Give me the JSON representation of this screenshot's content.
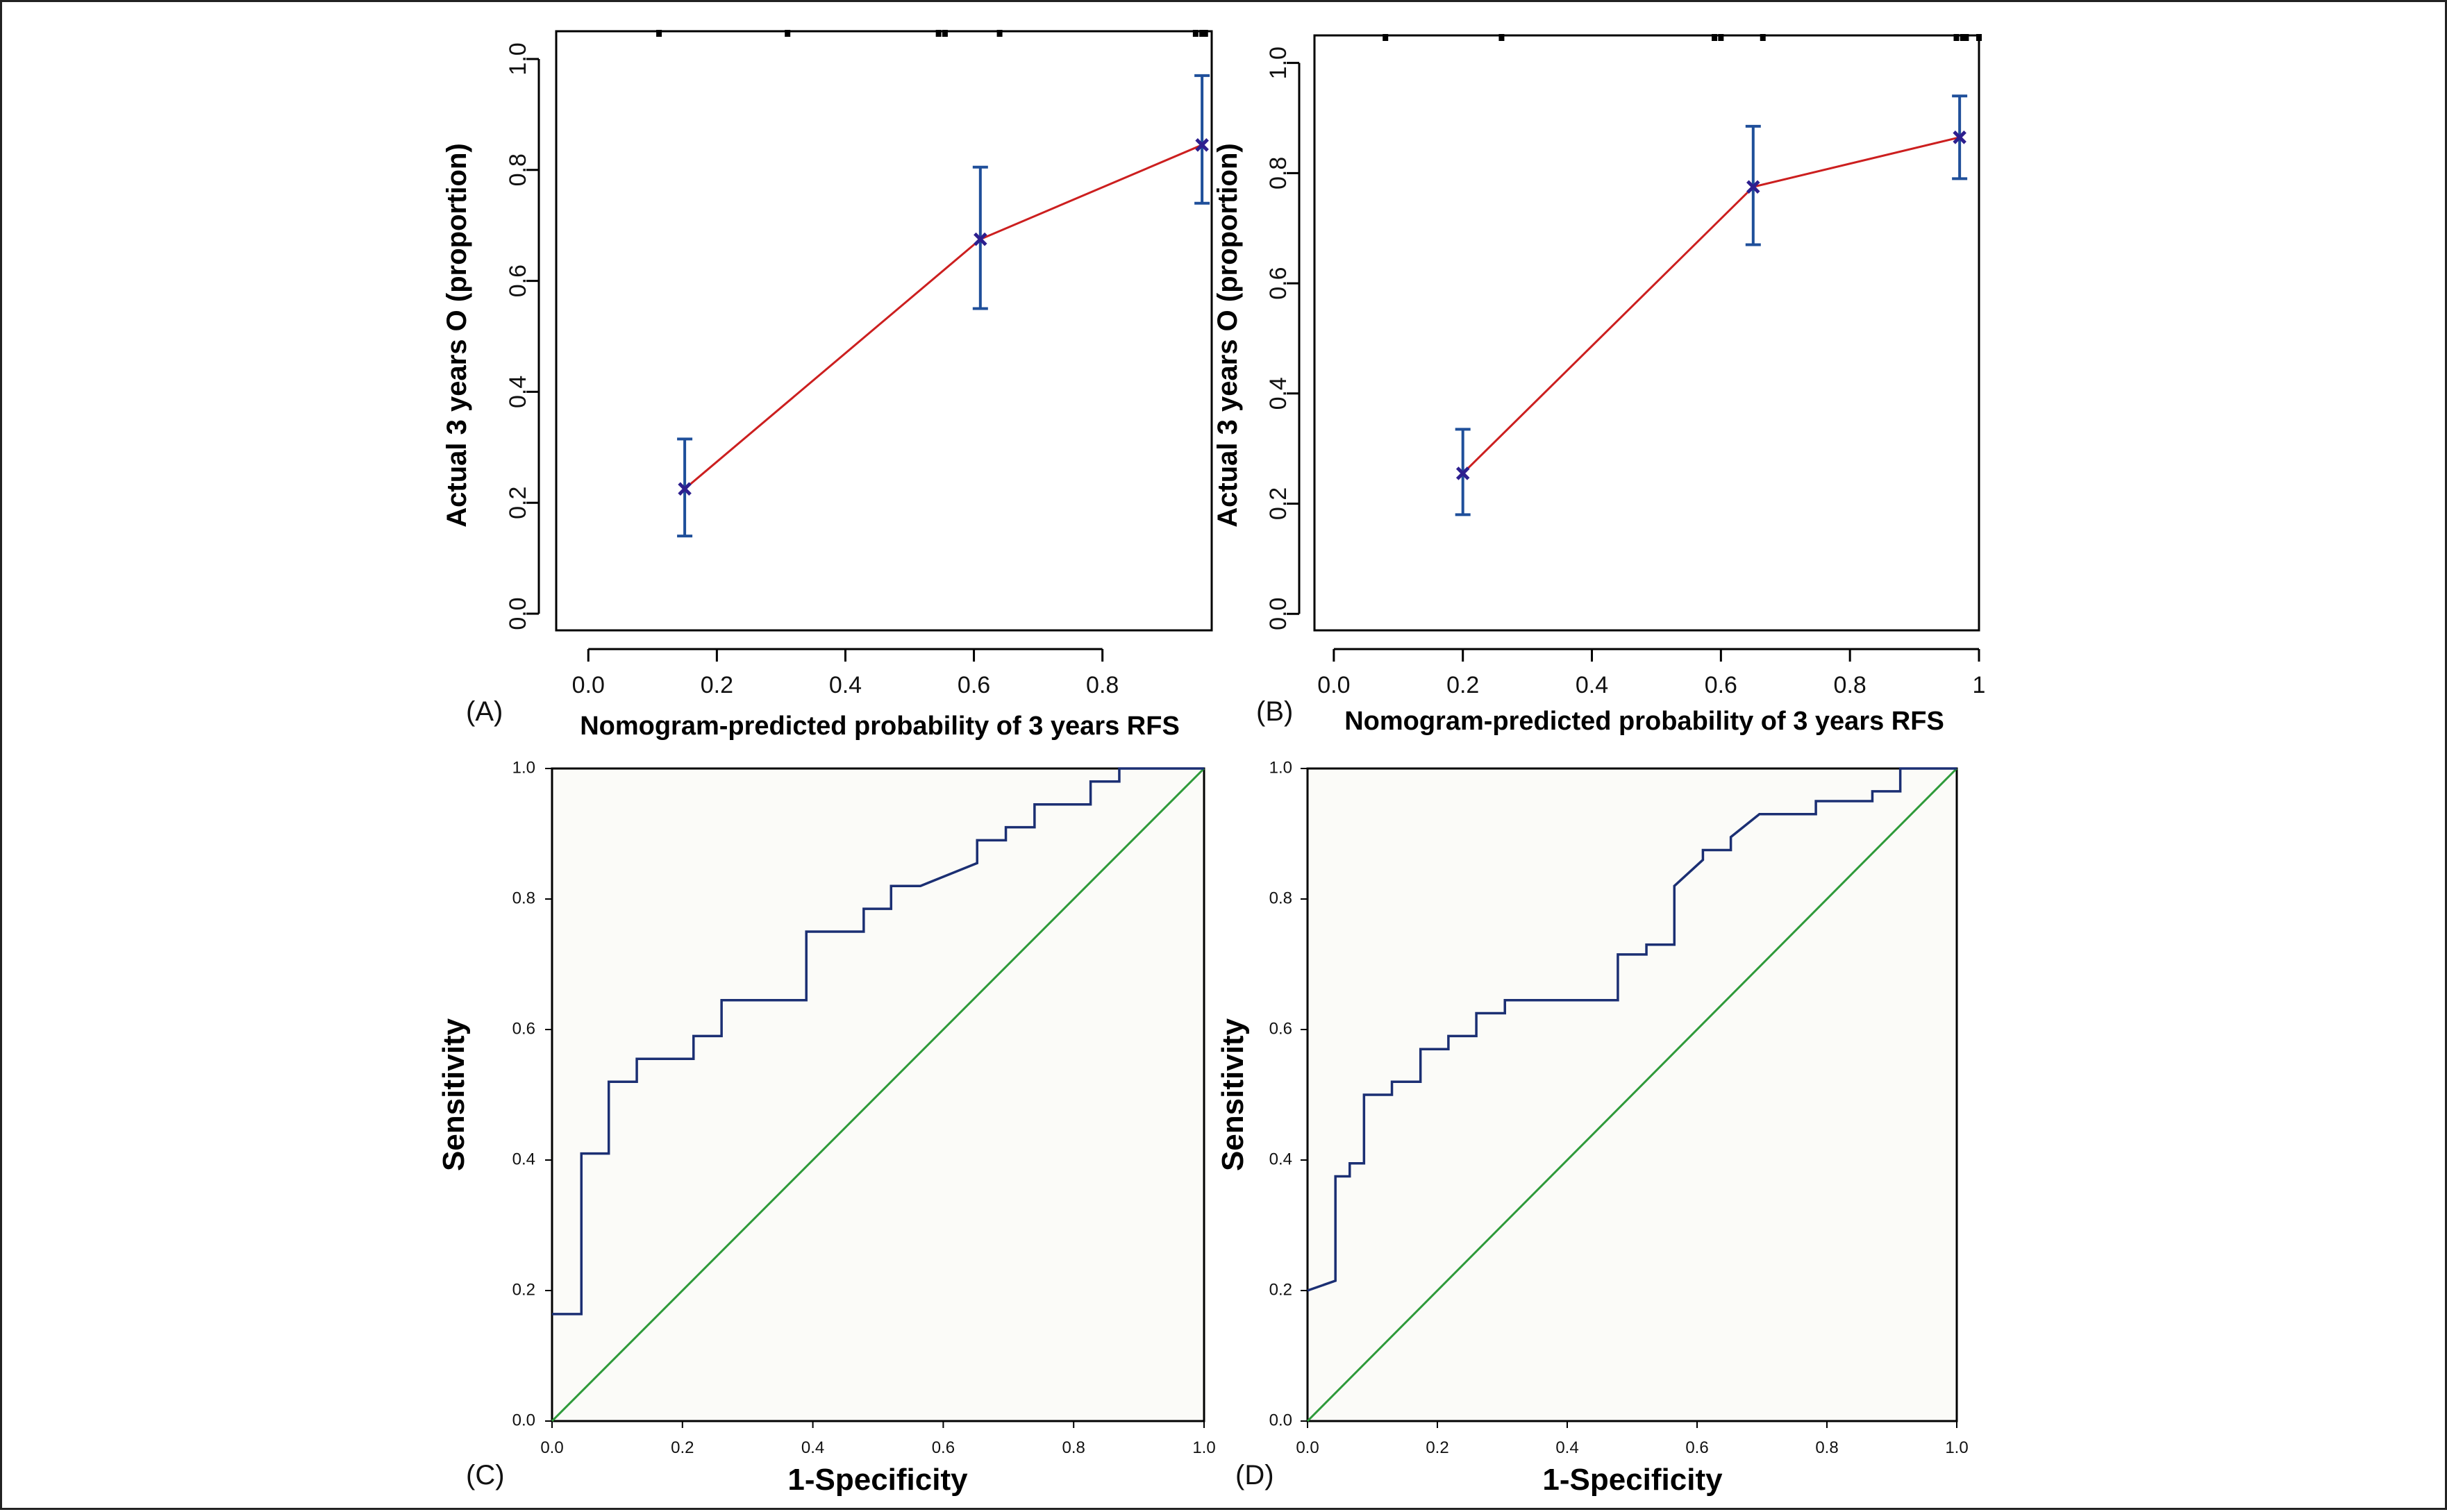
{
  "colors": {
    "calibration_line": "#cc1f1f",
    "error_bar": "#1f4f9a",
    "point_marker": "#2d1f8f",
    "roc_curve": "#1b2f73",
    "reference_line": "#2e9a3a",
    "plot_bg_roc": "#fbfbf8"
  },
  "chart_data": [
    {
      "panel": "(A)",
      "type": "line",
      "xlabel": "Nomogram-predicted probability of 3 years RFS",
      "ylabel": "Actual 3 years O (proportion)",
      "xlim": [
        -0.05,
        0.97
      ],
      "ylim": [
        -0.03,
        1.05
      ],
      "x_ticks": [
        "0.0",
        "0.2",
        "0.4",
        "0.6",
        "0.8"
      ],
      "y_ticks": [
        "0.0",
        "0.2",
        "0.4",
        "0.6",
        "0.8",
        "1.0"
      ],
      "x_tick_values": [
        0,
        0.2,
        0.4,
        0.6,
        0.8
      ],
      "y_tick_values": [
        0,
        0.2,
        0.4,
        0.6,
        0.8,
        1.0
      ],
      "series": [
        {
          "x": [
            0.15,
            0.61,
            0.955
          ],
          "y": [
            0.225,
            0.675,
            0.845
          ],
          "y_lower": [
            0.14,
            0.55,
            0.74
          ],
          "y_upper": [
            0.315,
            0.805,
            0.97
          ]
        }
      ],
      "rug_ticks": [
        0.11,
        0.31,
        0.545,
        0.555,
        0.64,
        0.945,
        0.955,
        0.96
      ]
    },
    {
      "panel": "(B)",
      "type": "line",
      "xlabel": "Nomogram-predicted probability of 3 years RFS",
      "ylabel": "Actual 3 years O (proportion)",
      "xlim": [
        -0.03,
        1.0
      ],
      "ylim": [
        -0.03,
        1.05
      ],
      "x_ticks": [
        "0.0",
        "0.2",
        "0.4",
        "0.6",
        "0.8",
        "1"
      ],
      "y_ticks": [
        "0.0",
        "0.2",
        "0.4",
        "0.6",
        "0.8",
        "1.0"
      ],
      "x_tick_values": [
        0,
        0.2,
        0.4,
        0.6,
        0.8,
        1.0
      ],
      "y_tick_values": [
        0,
        0.2,
        0.4,
        0.6,
        0.8,
        1.0
      ],
      "series": [
        {
          "x": [
            0.2,
            0.65,
            0.97
          ],
          "y": [
            0.255,
            0.775,
            0.865
          ],
          "y_lower": [
            0.18,
            0.67,
            0.79
          ],
          "y_upper": [
            0.335,
            0.885,
            0.94
          ]
        }
      ],
      "rug_ticks": [
        0.08,
        0.26,
        0.59,
        0.6,
        0.665,
        0.965,
        0.975,
        0.98,
        1.0
      ]
    },
    {
      "panel": "(C)",
      "type": "line",
      "xlabel": "1-Specificity",
      "ylabel": "Sensitivity",
      "xlim": [
        0,
        1
      ],
      "ylim": [
        0,
        1
      ],
      "x_ticks": [
        "0.0",
        "0.2",
        "0.4",
        "0.6",
        "0.8",
        "1.0"
      ],
      "y_ticks": [
        "0.0",
        "0.2",
        "0.4",
        "0.6",
        "0.8",
        "1.0"
      ],
      "x_tick_values": [
        0,
        0.2,
        0.4,
        0.6,
        0.8,
        1.0
      ],
      "y_tick_values": [
        0,
        0.2,
        0.4,
        0.6,
        0.8,
        1.0
      ],
      "series": [
        {
          "x": [
            0,
            0.045,
            0.045,
            0.087,
            0.087,
            0.13,
            0.13,
            0.217,
            0.217,
            0.26,
            0.26,
            0.39,
            0.39,
            0.478,
            0.478,
            0.52,
            0.52,
            0.565,
            0.565,
            0.652,
            0.652,
            0.696,
            0.696,
            0.74,
            0.74,
            0.826,
            0.826,
            0.87,
            0.87,
            1.0
          ],
          "y": [
            0.164,
            0.164,
            0.41,
            0.41,
            0.52,
            0.52,
            0.555,
            0.555,
            0.59,
            0.59,
            0.645,
            0.645,
            0.75,
            0.75,
            0.785,
            0.785,
            0.82,
            0.82,
            0.82,
            0.855,
            0.89,
            0.89,
            0.91,
            0.91,
            0.945,
            0.945,
            0.98,
            0.98,
            1.0,
            1.0
          ]
        },
        {
          "x": [
            0,
            1
          ],
          "y": [
            0,
            1
          ]
        }
      ]
    },
    {
      "panel": "(D)",
      "type": "line",
      "xlabel": "1-Specificity",
      "ylabel": "Sensitivity",
      "xlim": [
        0,
        1
      ],
      "ylim": [
        0,
        1
      ],
      "x_ticks": [
        "0.0",
        "0.2",
        "0.4",
        "0.6",
        "0.8",
        "1.0"
      ],
      "y_ticks": [
        "0.0",
        "0.2",
        "0.4",
        "0.6",
        "0.8",
        "1.0"
      ],
      "x_tick_values": [
        0,
        0.2,
        0.4,
        0.6,
        0.8,
        1.0
      ],
      "y_tick_values": [
        0,
        0.2,
        0.4,
        0.6,
        0.8,
        1.0
      ],
      "series": [
        {
          "x": [
            0,
            0.043,
            0.043,
            0.065,
            0.065,
            0.087,
            0.087,
            0.13,
            0.13,
            0.174,
            0.174,
            0.217,
            0.217,
            0.26,
            0.26,
            0.304,
            0.304,
            0.348,
            0.348,
            0.478,
            0.478,
            0.522,
            0.522,
            0.565,
            0.565,
            0.609,
            0.609,
            0.652,
            0.652,
            0.696,
            0.696,
            0.783,
            0.783,
            0.87,
            0.87,
            0.913,
            0.913,
            1.0
          ],
          "y": [
            0.2,
            0.215,
            0.375,
            0.375,
            0.395,
            0.395,
            0.5,
            0.5,
            0.52,
            0.52,
            0.57,
            0.57,
            0.59,
            0.59,
            0.625,
            0.625,
            0.645,
            0.645,
            0.645,
            0.645,
            0.715,
            0.715,
            0.73,
            0.73,
            0.82,
            0.86,
            0.875,
            0.875,
            0.895,
            0.93,
            0.93,
            0.93,
            0.95,
            0.95,
            0.965,
            0.965,
            1.0,
            1.0
          ]
        },
        {
          "x": [
            0,
            1
          ],
          "y": [
            0,
            1
          ]
        }
      ]
    }
  ]
}
